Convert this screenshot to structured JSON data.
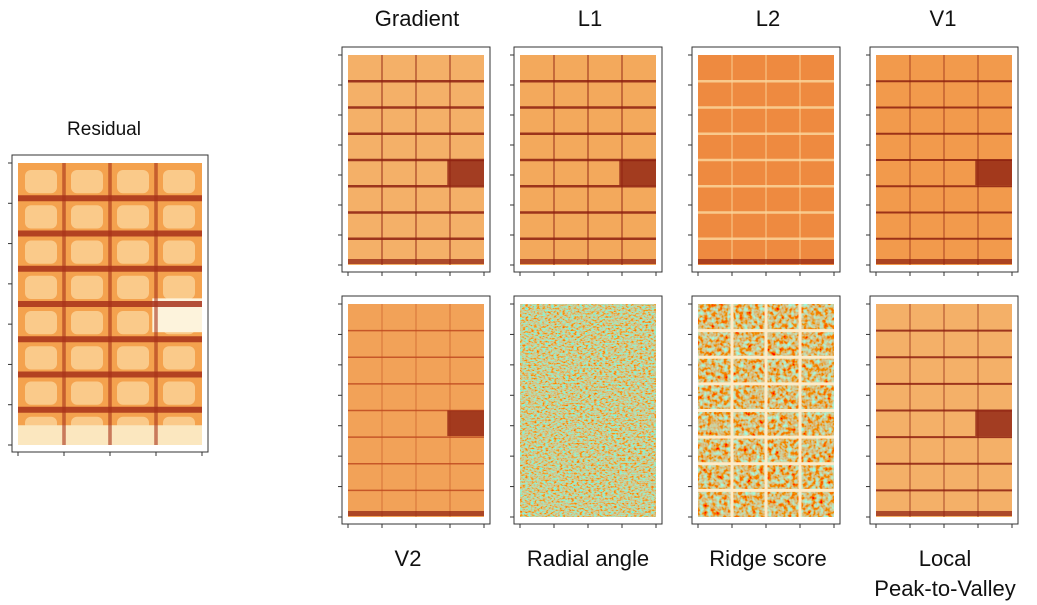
{
  "panels": [
    {
      "label": "Residual"
    },
    {
      "label": "Gradient"
    },
    {
      "label": "L1"
    },
    {
      "label": "L2"
    },
    {
      "label": "V1"
    },
    {
      "label": "V2"
    },
    {
      "label": "Radial angle"
    },
    {
      "label": "Ridge score"
    },
    {
      "label": [
        "Local",
        "Peak-to-Valley"
      ]
    }
  ]
}
